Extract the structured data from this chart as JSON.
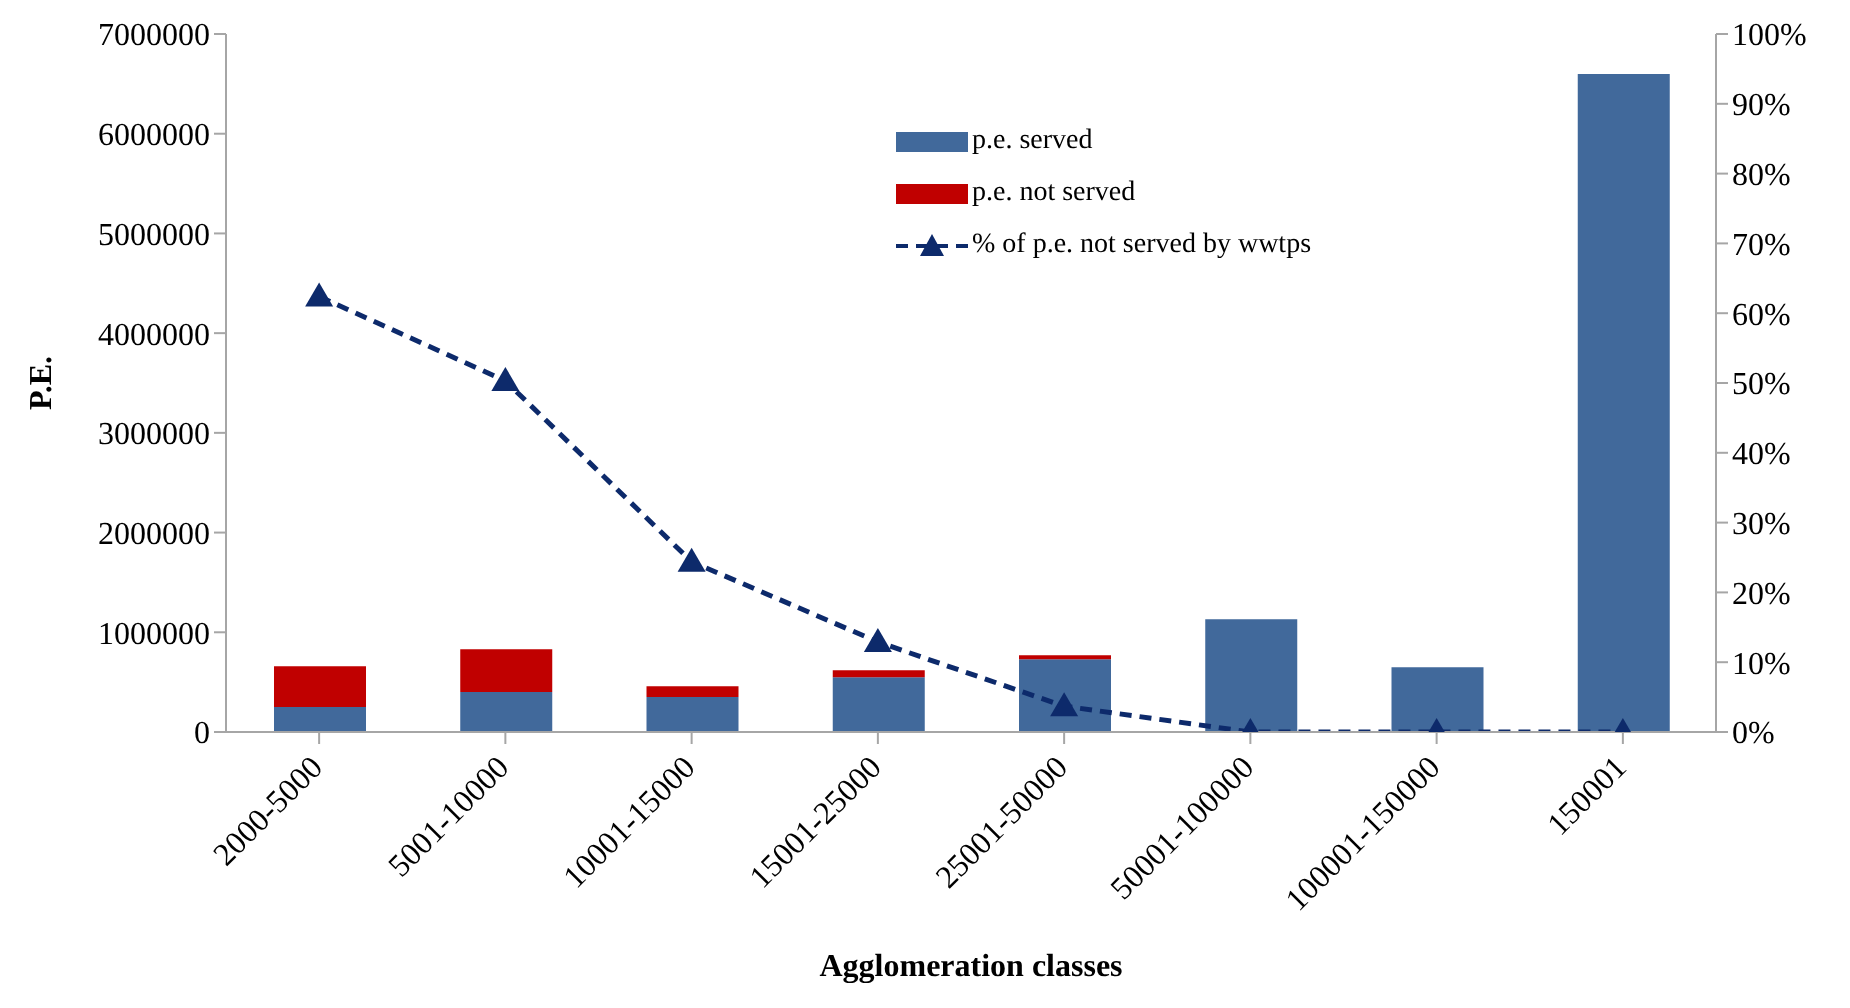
{
  "chart_data": {
    "type": "bar",
    "stacked": true,
    "xlabel": "Agglomeration classes",
    "ylabel": "P.E.",
    "categories": [
      "2000-5000",
      "5001-10000",
      "10001-15000",
      "15001-25000",
      "25001-50000",
      "50001-100000",
      "100001-150000",
      "150001"
    ],
    "series": [
      {
        "name": "p.e. served",
        "color": "#41699b",
        "values": [
          250000,
          400000,
          350000,
          550000,
          730000,
          1130000,
          650000,
          6600000
        ]
      },
      {
        "name": "p.e. not served",
        "color": "#c00000",
        "values": [
          410000,
          430000,
          110000,
          70000,
          40000,
          0,
          0,
          0
        ]
      },
      {
        "name": "% of p.e. not served by wwtps",
        "type": "line",
        "axis": "y2",
        "color": "#0d2a6b",
        "marker": "triangle",
        "line_style": "dashed",
        "values": [
          62.4,
          50.3,
          24.4,
          12.9,
          3.7,
          0,
          0,
          0
        ]
      }
    ],
    "ylim": [
      0,
      7000000
    ],
    "yticks": [
      0,
      1000000,
      2000000,
      3000000,
      4000000,
      5000000,
      6000000,
      7000000
    ],
    "y2lim": [
      0,
      100
    ],
    "y2ticks": [
      {
        "value": 0,
        "label": "0%"
      },
      {
        "value": 10,
        "label": "10%"
      },
      {
        "value": 20,
        "label": "20%"
      },
      {
        "value": 30,
        "label": "30%"
      },
      {
        "value": 40,
        "label": "40%"
      },
      {
        "value": 50,
        "label": "50%"
      },
      {
        "value": 60,
        "label": "60%"
      },
      {
        "value": 70,
        "label": "70%"
      },
      {
        "value": 80,
        "label": "80%"
      },
      {
        "value": 90,
        "label": "90%"
      },
      {
        "value": 100,
        "label": "100%"
      }
    ],
    "grid": false,
    "legend": "top"
  }
}
